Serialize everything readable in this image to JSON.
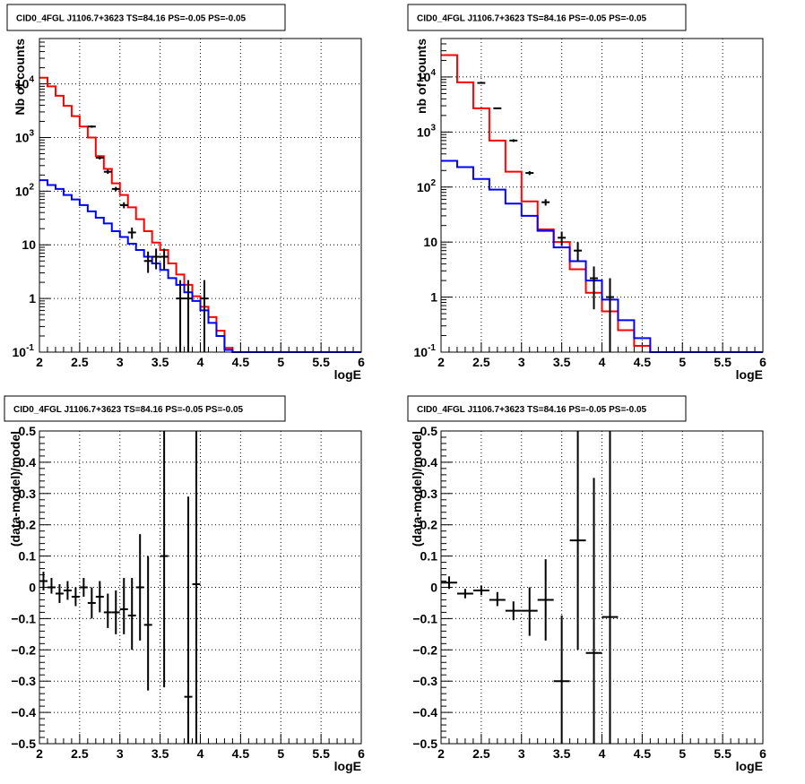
{
  "panels": [
    {
      "id": "top-left",
      "title": "CID0_4FGL J1106.7+3623 TS=84.16 PS=-0.05 PS=-0.05",
      "chart_data": {
        "type": "line",
        "title": "CID0_4FGL J1106.7+3623 TS=84.16 PS=-0.05 PS=-0.05",
        "xlabel": "logE",
        "ylabel": "Nb of counts",
        "xlim": [
          2,
          6
        ],
        "ylim": [
          0.1,
          70000
        ],
        "yscale": "log",
        "grid": true,
        "xticks": [
          "2",
          "2.5",
          "3",
          "3.5",
          "4",
          "4.5",
          "5",
          "5.5",
          "6"
        ],
        "yticks": [
          {
            "value": 0.1,
            "base": "10",
            "exp": "-1"
          },
          {
            "value": 1,
            "label": "1"
          },
          {
            "value": 10,
            "label": "10"
          },
          {
            "value": 100,
            "base": "10",
            "exp": "2"
          },
          {
            "value": 1000,
            "base": "10",
            "exp": "3"
          },
          {
            "value": 10000,
            "base": "10",
            "exp": "4"
          }
        ],
        "bin_edges": [
          2,
          2.1,
          2.2,
          2.3,
          2.4,
          2.5,
          2.6,
          2.7,
          2.8,
          2.9,
          3.0,
          3.1,
          3.2,
          3.3,
          3.4,
          3.5,
          3.6,
          3.7,
          3.8,
          3.9,
          4.0,
          4.1,
          4.2,
          4.3,
          4.4,
          4.5,
          4.6,
          4.7,
          4.8,
          4.9,
          5.0,
          5.1,
          5.2,
          5.3,
          5.4,
          5.5,
          5.6,
          5.7,
          5.8,
          5.9,
          6.0
        ],
        "series": [
          {
            "color": "#ff0000",
            "values": [
              13000,
              9000,
              6000,
              3900,
              2500,
              1600,
              1000,
              450,
              260,
              140,
              85,
              50,
              30,
              18,
              11,
              8,
              4.5,
              2.8,
              1.8,
              1.1,
              0.7,
              0.45,
              0.25,
              0.12,
              0.1,
              0.1,
              0.1,
              0.1,
              0.1,
              0.1,
              0.1,
              0.1,
              0.1,
              0.1,
              0.1,
              0.1,
              0.1,
              0.1,
              0.1,
              0.1
            ]
          },
          {
            "color": "#0000ff",
            "values": [
              160,
              130,
              110,
              85,
              70,
              55,
              42,
              32,
              25,
              18,
              14,
              10.5,
              8,
              6,
              4.5,
              3.4,
              2.4,
              1.8,
              1.3,
              0.9,
              0.6,
              0.35,
              0.2,
              0.11,
              0.1,
              0.1,
              0.1,
              0.1,
              0.1,
              0.1,
              0.1,
              0.1,
              0.1,
              0.1,
              0.1,
              0.1,
              0.1,
              0.1,
              0.1,
              0.1
            ]
          }
        ],
        "points": [
          {
            "x": 2.65,
            "y": 1600,
            "ylo": 1520,
            "yhi": 1680
          },
          {
            "x": 2.75,
            "y": 420,
            "ylo": 390,
            "yhi": 450
          },
          {
            "x": 2.85,
            "y": 230,
            "ylo": 210,
            "yhi": 250
          },
          {
            "x": 2.95,
            "y": 110,
            "ylo": 100,
            "yhi": 120
          },
          {
            "x": 3.05,
            "y": 55,
            "ylo": 48,
            "yhi": 62
          },
          {
            "x": 3.15,
            "y": 17,
            "ylo": 13,
            "yhi": 21
          },
          {
            "x": 3.35,
            "y": 5,
            "ylo": 3,
            "yhi": 7.5
          },
          {
            "x": 3.45,
            "y": 6,
            "ylo": 3.5,
            "yhi": 8.5
          },
          {
            "x": 3.55,
            "y": 6,
            "ylo": 3.5,
            "yhi": 8.5
          },
          {
            "x": 3.75,
            "y": 1,
            "ylo": 0.1,
            "yhi": 2.2
          },
          {
            "x": 3.85,
            "y": 1,
            "ylo": 0.1,
            "yhi": 2.2
          },
          {
            "x": 4.05,
            "y": 1,
            "ylo": 0.1,
            "yhi": 2.2
          }
        ]
      }
    },
    {
      "id": "top-right",
      "title": "CID0_4FGL J1106.7+3623 TS=84.16 PS=-0.05 PS=-0.05",
      "chart_data": {
        "type": "line",
        "title": "CID0_4FGL J1106.7+3623 TS=84.16 PS=-0.05 PS=-0.05",
        "xlabel": "logE",
        "ylabel": "nb of counts",
        "xlim": [
          2,
          6
        ],
        "ylim": [
          0.1,
          50000
        ],
        "yscale": "log",
        "grid": true,
        "xticks": [
          "2",
          "2.5",
          "3",
          "3.5",
          "4",
          "4.5",
          "5",
          "5.5",
          "6"
        ],
        "yticks": [
          {
            "value": 0.1,
            "base": "10",
            "exp": "-1"
          },
          {
            "value": 1,
            "label": "1"
          },
          {
            "value": 10,
            "label": "10"
          },
          {
            "value": 100,
            "base": "10",
            "exp": "2"
          },
          {
            "value": 1000,
            "base": "10",
            "exp": "3"
          },
          {
            "value": 10000,
            "base": "10",
            "exp": "4"
          }
        ],
        "bin_edges": [
          2,
          2.2,
          2.4,
          2.6,
          2.8,
          3.0,
          3.2,
          3.4,
          3.6,
          3.8,
          4.0,
          4.2,
          4.4,
          4.6,
          4.8,
          5.0,
          5.2,
          5.4,
          5.6,
          5.8,
          6.0
        ],
        "series": [
          {
            "color": "#ff0000",
            "values": [
              25000,
              8000,
              2700,
              700,
              190,
              55,
              17,
              10,
              3.2,
              1.2,
              0.55,
              0.25,
              0.13,
              0.1,
              0.1,
              0.1,
              0.1,
              0.1,
              0.1,
              0.1
            ]
          },
          {
            "color": "#0000ff",
            "values": [
              300,
              230,
              140,
              90,
              50,
              30,
              16,
              8,
              4.5,
              2,
              0.9,
              0.38,
              0.18,
              0.1,
              0.1,
              0.1,
              0.1,
              0.1,
              0.1,
              0.1
            ]
          }
        ],
        "points": [
          {
            "x": 2.5,
            "y": 7800,
            "ylo": 7650,
            "yhi": 7950
          },
          {
            "x": 2.7,
            "y": 2700,
            "ylo": 2620,
            "yhi": 2780
          },
          {
            "x": 2.9,
            "y": 700,
            "ylo": 660,
            "yhi": 740
          },
          {
            "x": 3.1,
            "y": 180,
            "ylo": 165,
            "yhi": 195
          },
          {
            "x": 3.3,
            "y": 53,
            "ylo": 46,
            "yhi": 60
          },
          {
            "x": 3.5,
            "y": 12,
            "ylo": 8.5,
            "yhi": 15.5
          },
          {
            "x": 3.7,
            "y": 7,
            "ylo": 4.5,
            "yhi": 10
          },
          {
            "x": 3.9,
            "y": 2.2,
            "ylo": 0.6,
            "yhi": 3.6
          },
          {
            "x": 4.1,
            "y": 1,
            "ylo": 0.1,
            "yhi": 2.2
          }
        ]
      }
    },
    {
      "id": "bottom-left",
      "title": "CID0_4FGL J1106.7+3623 TS=84.16 PS=-0.05 PS=-0.05",
      "chart_data": {
        "type": "scatter",
        "title": "CID0_4FGL J1106.7+3623 TS=84.16 PS=-0.05 PS=-0.05",
        "xlabel": "logE",
        "ylabel": "(data-model)/model",
        "xlim": [
          2,
          6
        ],
        "ylim": [
          -0.5,
          0.5
        ],
        "yscale": "linear",
        "grid": true,
        "xticks": [
          "2",
          "2.5",
          "3",
          "3.5",
          "4",
          "4.5",
          "5",
          "5.5",
          "6"
        ],
        "yticks": [
          {
            "value": -0.5,
            "label": "−0.5"
          },
          {
            "value": -0.4,
            "label": "−0.4"
          },
          {
            "value": -0.3,
            "label": "−0.3"
          },
          {
            "value": -0.2,
            "label": "−0.2"
          },
          {
            "value": -0.1,
            "label": "−0.1"
          },
          {
            "value": 0,
            "label": "0"
          },
          {
            "value": 0.1,
            "label": "0.1"
          },
          {
            "value": 0.2,
            "label": "0.2"
          },
          {
            "value": 0.3,
            "label": "0.3"
          },
          {
            "value": 0.4,
            "label": "0.4"
          },
          {
            "value": 0.5,
            "label": "0.5"
          }
        ],
        "xhalf": 0.05,
        "points": [
          {
            "x": 2.05,
            "y": 0.02,
            "ylo": -0.01,
            "yhi": 0.05
          },
          {
            "x": 2.15,
            "y": 0.0,
            "ylo": -0.02,
            "yhi": 0.03
          },
          {
            "x": 2.25,
            "y": -0.02,
            "ylo": -0.05,
            "yhi": 0.01
          },
          {
            "x": 2.35,
            "y": -0.01,
            "ylo": -0.04,
            "yhi": 0.02
          },
          {
            "x": 2.45,
            "y": -0.03,
            "ylo": -0.06,
            "yhi": 0.0
          },
          {
            "x": 2.55,
            "y": 0.0,
            "ylo": -0.03,
            "yhi": 0.03
          },
          {
            "x": 2.65,
            "y": -0.05,
            "ylo": -0.1,
            "yhi": 0.0
          },
          {
            "x": 2.75,
            "y": -0.03,
            "ylo": -0.08,
            "yhi": 0.02
          },
          {
            "x": 2.85,
            "y": -0.08,
            "ylo": -0.13,
            "yhi": -0.02
          },
          {
            "x": 2.95,
            "y": -0.08,
            "ylo": -0.15,
            "yhi": -0.01
          },
          {
            "x": 3.05,
            "y": -0.07,
            "ylo": -0.15,
            "yhi": 0.03
          },
          {
            "x": 3.15,
            "y": -0.09,
            "ylo": -0.2,
            "yhi": 0.03
          },
          {
            "x": 3.25,
            "y": 0.0,
            "ylo": -0.17,
            "yhi": 0.17
          },
          {
            "x": 3.35,
            "y": -0.12,
            "ylo": -0.33,
            "yhi": 0.1
          },
          {
            "x": 3.55,
            "y": 0.1,
            "ylo": -0.32,
            "yhi": 0.5
          },
          {
            "x": 3.85,
            "y": -0.35,
            "ylo": -0.5,
            "yhi": 0.29
          },
          {
            "x": 3.95,
            "y": 0.01,
            "ylo": -0.5,
            "yhi": 0.5
          }
        ]
      }
    },
    {
      "id": "bottom-right",
      "title": "CID0_4FGL J1106.7+3623 TS=84.16 PS=-0.05 PS=-0.05",
      "chart_data": {
        "type": "scatter",
        "title": "CID0_4FGL J1106.7+3623 TS=84.16 PS=-0.05 PS=-0.05",
        "xlabel": "logE",
        "ylabel": "(data-model)/model",
        "xlim": [
          2,
          6
        ],
        "ylim": [
          -0.5,
          0.5
        ],
        "yscale": "linear",
        "grid": true,
        "xticks": [
          "2",
          "2.5",
          "3",
          "3.5",
          "4",
          "4.5",
          "5",
          "5.5",
          "6"
        ],
        "yticks": [
          {
            "value": -0.5,
            "label": "−0.5"
          },
          {
            "value": -0.4,
            "label": "−0.4"
          },
          {
            "value": -0.3,
            "label": "−0.3"
          },
          {
            "value": -0.2,
            "label": "−0.2"
          },
          {
            "value": -0.1,
            "label": "−0.1"
          },
          {
            "value": 0,
            "label": "0"
          },
          {
            "value": 0.1,
            "label": "0.1"
          },
          {
            "value": 0.2,
            "label": "0.2"
          },
          {
            "value": 0.3,
            "label": "0.3"
          },
          {
            "value": 0.4,
            "label": "0.4"
          },
          {
            "value": 0.5,
            "label": "0.5"
          }
        ],
        "xhalf": 0.1,
        "points": [
          {
            "x": 2.1,
            "y": 0.015,
            "ylo": -0.005,
            "yhi": 0.035
          },
          {
            "x": 2.3,
            "y": -0.02,
            "ylo": -0.035,
            "yhi": -0.005
          },
          {
            "x": 2.5,
            "y": -0.01,
            "ylo": -0.025,
            "yhi": 0.005
          },
          {
            "x": 2.7,
            "y": -0.04,
            "ylo": -0.06,
            "yhi": -0.015
          },
          {
            "x": 2.9,
            "y": -0.075,
            "ylo": -0.105,
            "yhi": -0.045
          },
          {
            "x": 3.1,
            "y": -0.075,
            "ylo": -0.155,
            "yhi": 0.0
          },
          {
            "x": 3.3,
            "y": -0.04,
            "ylo": -0.17,
            "yhi": 0.09
          },
          {
            "x": 3.5,
            "y": -0.3,
            "ylo": -0.5,
            "yhi": -0.09
          },
          {
            "x": 3.7,
            "y": 0.15,
            "ylo": -0.2,
            "yhi": 0.5
          },
          {
            "x": 3.9,
            "y": -0.21,
            "ylo": -0.5,
            "yhi": 0.35
          },
          {
            "x": 4.1,
            "y": -0.095,
            "ylo": -0.5,
            "yhi": 0.5
          }
        ]
      }
    }
  ]
}
